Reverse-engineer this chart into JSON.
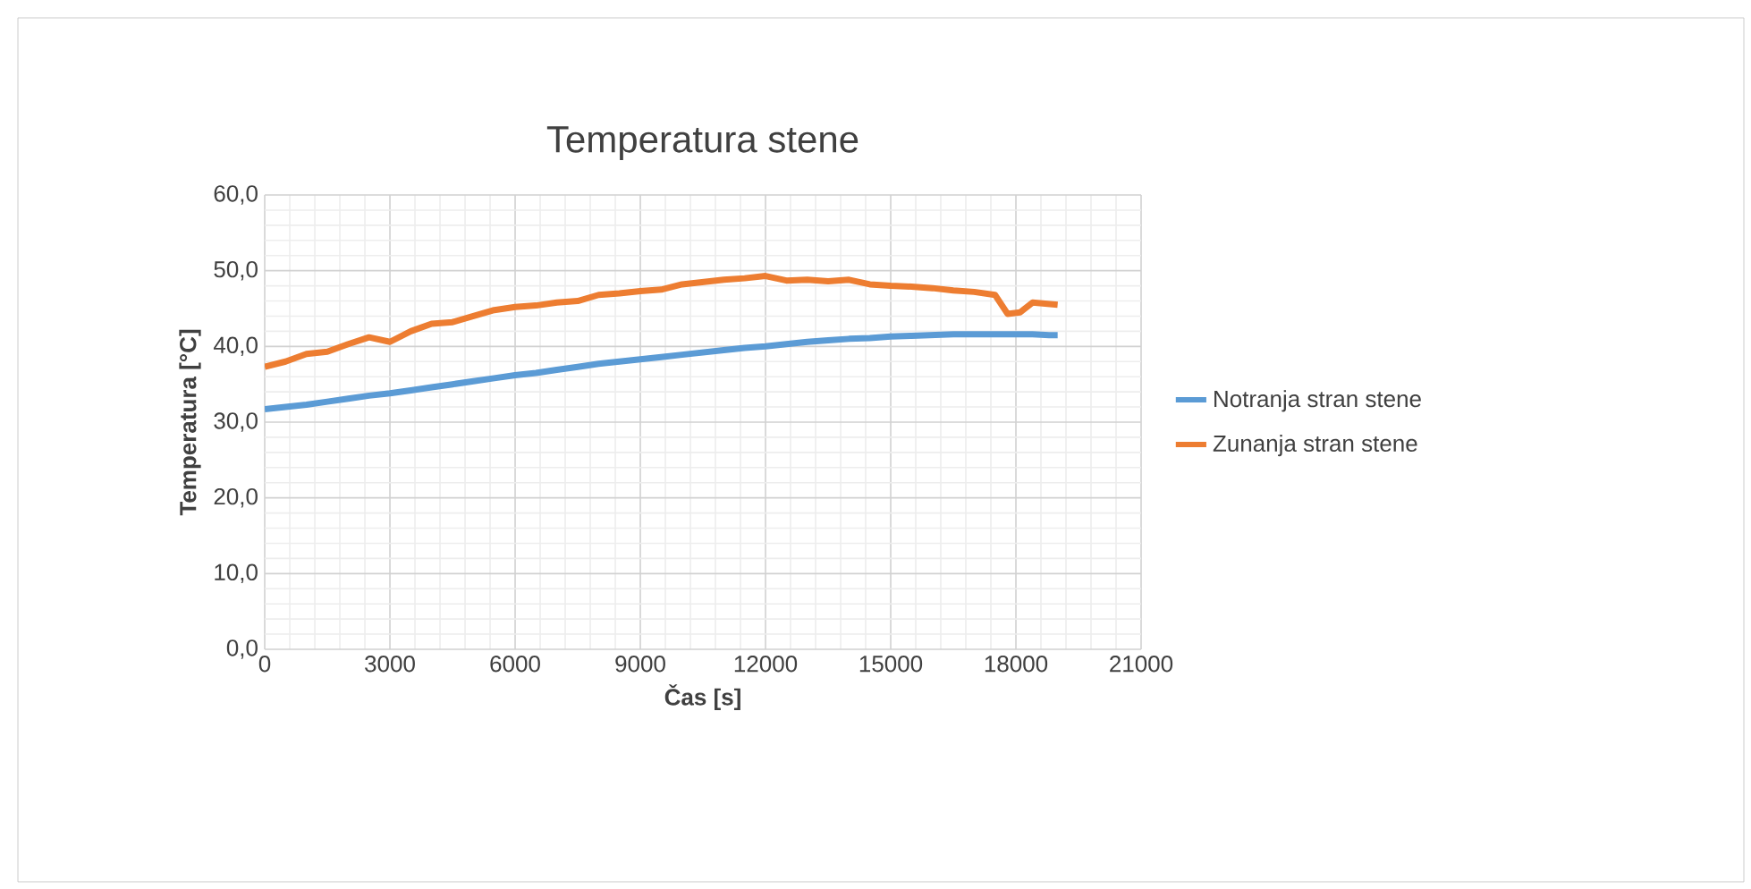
{
  "chart_data": {
    "type": "line",
    "title": "Temperatura stene",
    "xlabel": "Čas [s]",
    "ylabel": "Temperatura [°C]",
    "x": [
      0,
      500,
      1000,
      1500,
      2000,
      2500,
      3000,
      3500,
      4000,
      4500,
      5000,
      5500,
      6000,
      6500,
      7000,
      7500,
      8000,
      8500,
      9000,
      9500,
      10000,
      10500,
      11000,
      11500,
      12000,
      12500,
      13000,
      13500,
      14000,
      14500,
      15000,
      15500,
      16000,
      16500,
      17000,
      17500,
      17800,
      18100,
      18400,
      18800,
      19000
    ],
    "series": [
      {
        "name": "Notranja stran stene",
        "color": "#5b9bd5",
        "values": [
          31.7,
          32.0,
          32.3,
          32.7,
          33.1,
          33.5,
          33.8,
          34.2,
          34.6,
          35.0,
          35.4,
          35.8,
          36.2,
          36.5,
          36.9,
          37.3,
          37.7,
          38.0,
          38.3,
          38.6,
          38.9,
          39.2,
          39.5,
          39.8,
          40.0,
          40.3,
          40.6,
          40.8,
          41.0,
          41.1,
          41.3,
          41.4,
          41.5,
          41.6,
          41.6,
          41.6,
          41.6,
          41.6,
          41.6,
          41.5,
          41.5
        ]
      },
      {
        "name": "Zunanja stran stene",
        "color": "#ed7d31",
        "values": [
          37.3,
          38.0,
          39.0,
          39.3,
          40.3,
          41.2,
          40.6,
          42.0,
          43.0,
          43.2,
          44.0,
          44.8,
          45.2,
          45.4,
          45.8,
          46.0,
          46.8,
          47.0,
          47.3,
          47.5,
          48.2,
          48.5,
          48.8,
          49.0,
          49.3,
          48.7,
          48.8,
          48.6,
          48.8,
          48.2,
          48.0,
          47.9,
          47.7,
          47.4,
          47.2,
          46.8,
          44.3,
          44.5,
          45.8,
          45.6,
          45.5
        ]
      }
    ],
    "xlim": [
      0,
      21000
    ],
    "xticks": [
      0,
      3000,
      6000,
      9000,
      12000,
      15000,
      18000,
      21000
    ],
    "ylim": [
      0,
      60
    ],
    "yticks": [
      {
        "value": 0,
        "label": "0,0"
      },
      {
        "value": 10,
        "label": "10,0"
      },
      {
        "value": 20,
        "label": "20,0"
      },
      {
        "value": 30,
        "label": "30,0"
      },
      {
        "value": 40,
        "label": "40,0"
      },
      {
        "value": 50,
        "label": "50,0"
      },
      {
        "value": 60,
        "label": "60,0"
      }
    ],
    "grid": true,
    "legend": "right",
    "marker": "none",
    "line_style": "solid"
  }
}
